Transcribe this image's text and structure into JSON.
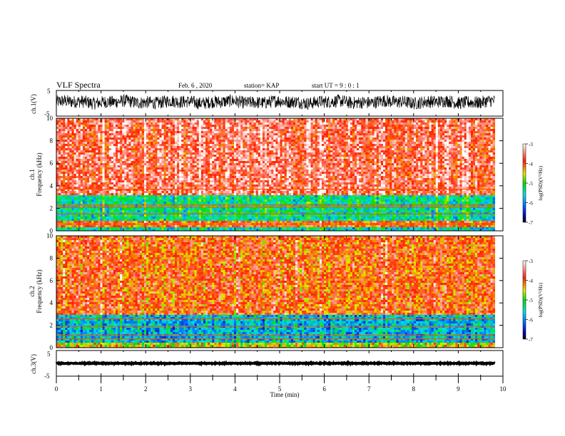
{
  "header": {
    "title": "VLF Spectra",
    "date": "Feb. 6 , 2020",
    "station": "station= KAP",
    "start": "start  UT =   9 : 0  : 1"
  },
  "axes": {
    "xlabel": "Time  (min)",
    "x_ticks": [
      "0",
      "1",
      "2",
      "3",
      "4",
      "5",
      "6",
      "7",
      "8",
      "9",
      "10"
    ],
    "ch1_wave_label": "ch.1(V)",
    "ch3_wave_label": "ch.3(V)",
    "wave_ticks": [
      "5",
      "-5"
    ],
    "wave_ticks_ch3": [
      "5",
      "-5"
    ],
    "spec_ylabel_ch1": [
      "ch.1",
      "Frequency (kHz)"
    ],
    "spec_ylabel_ch2": [
      "ch.2",
      "Frequency (kHz)"
    ],
    "freq_ticks": [
      "0",
      "2",
      "4",
      "6",
      "8",
      "10"
    ]
  },
  "colorbar": {
    "label": "log(PSD)(V²/Hz)",
    "ticks": [
      "-3",
      "-4",
      "-5",
      "-6",
      "-7"
    ]
  },
  "chart_data": [
    {
      "type": "line",
      "name": "ch1-waveform",
      "ylabel": "ch.1(V)",
      "xlim": [
        0,
        10
      ],
      "ylim": [
        -5,
        5
      ],
      "baseline": 0.5,
      "amplitude": 2.5
    },
    {
      "type": "heatmap",
      "name": "ch1-spectrogram",
      "ylabel": "Frequency (kHz)",
      "xlim": [
        0,
        10
      ],
      "ylim": [
        0,
        10
      ],
      "zlim": [
        -7,
        -3
      ],
      "data_end_min": 9.82,
      "bands": [
        {
          "f": [
            0,
            0.3
          ],
          "level": -5.5
        },
        {
          "f": [
            0.3,
            0.9
          ],
          "level": -4.0
        },
        {
          "f": [
            0.9,
            3.2
          ],
          "level": -5.4
        },
        {
          "f": [
            3.2,
            10
          ],
          "level": -3.6
        }
      ],
      "lines_khz": [
        0.6,
        1.5,
        2.1,
        2.3,
        3.7
      ]
    },
    {
      "type": "heatmap",
      "name": "ch2-spectrogram",
      "ylabel": "Frequency (kHz)",
      "xlim": [
        0,
        10
      ],
      "ylim": [
        0,
        10
      ],
      "zlim": [
        -7,
        -3
      ],
      "data_end_min": 9.82,
      "bands": [
        {
          "f": [
            0,
            0.5
          ],
          "level": -4.6
        },
        {
          "f": [
            0.5,
            3.0
          ],
          "level": -5.8
        },
        {
          "f": [
            3.0,
            10
          ],
          "level": -4.0
        }
      ],
      "lines_khz": [
        0.8,
        1.1,
        1.9,
        2.6
      ]
    },
    {
      "type": "line",
      "name": "ch3-waveform",
      "ylabel": "ch.3(V)",
      "xlim": [
        0,
        10
      ],
      "ylim": [
        -5,
        5
      ],
      "baseline": 0.0,
      "amplitude": 0.15
    }
  ]
}
